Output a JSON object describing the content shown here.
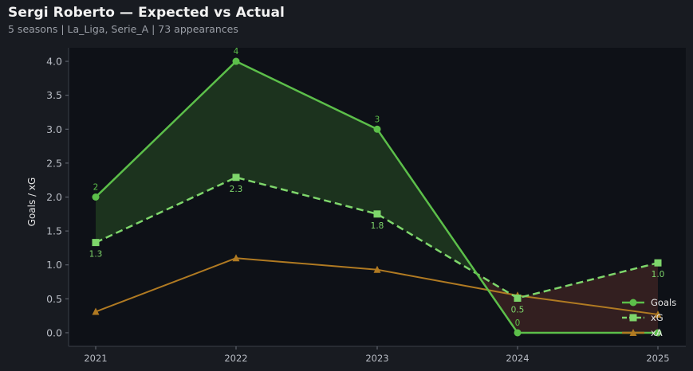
{
  "header": {
    "title": "Sergi Roberto — Expected vs Actual",
    "subtitle": "5 seasons | La_Liga, Serie_A | 73 appearances"
  },
  "colors": {
    "page_bg": "#181b21",
    "plot_bg": "#0e1117",
    "goals": "#5cbf4a",
    "xg": "#7ed66b",
    "xa": "#b07a22",
    "overperform_fill": "#1f3a20",
    "underperform_fill": "#3a2222",
    "grid": "#2a2f38"
  },
  "chart_data": {
    "type": "line",
    "title": "",
    "xlabel": "",
    "ylabel": "Goals / xG",
    "x": [
      "2021",
      "2022",
      "2023",
      "2024",
      "2025"
    ],
    "ylim": [
      -0.2,
      4.2
    ],
    "yticks": [
      "0.0",
      "0.5",
      "1.0",
      "1.5",
      "2.0",
      "2.5",
      "3.0",
      "3.5",
      "4.0"
    ],
    "ytick_values": [
      0,
      0.5,
      1,
      1.5,
      2,
      2.5,
      3,
      3.5,
      4
    ],
    "grid": false,
    "legend_position": "bottom-right",
    "series": [
      {
        "name": "Goals",
        "key": "goals",
        "values": [
          2,
          4,
          3,
          0,
          0
        ],
        "labels": [
          "2",
          "4",
          "3",
          "0",
          ""
        ],
        "marker": "circle",
        "dash": false
      },
      {
        "name": "xG",
        "key": "xg",
        "values": [
          1.33,
          2.29,
          1.75,
          0.51,
          1.03
        ],
        "labels": [
          "1.3",
          "2.3",
          "1.8",
          "0.5",
          "1.0"
        ],
        "marker": "square",
        "dash": true
      },
      {
        "name": "xA",
        "key": "xa",
        "values": [
          0.31,
          1.1,
          0.93,
          0.55,
          0.27
        ],
        "labels": [
          "",
          "",
          "",
          "",
          ""
        ],
        "marker": "triangle",
        "dash": false
      }
    ]
  }
}
